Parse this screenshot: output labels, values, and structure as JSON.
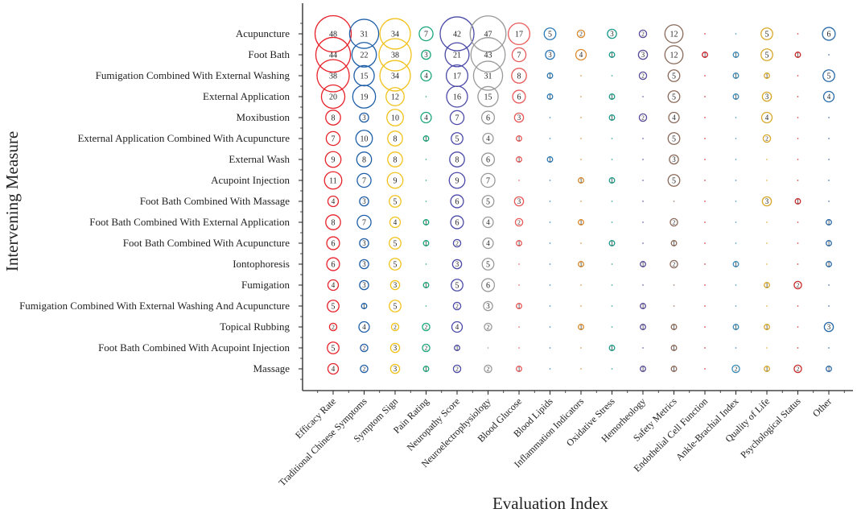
{
  "chart_data": {
    "type": "bubble",
    "xlabel": "Evaluation Index",
    "ylabel": "Intervening Measure",
    "categories_x": [
      "Efficacy Rate",
      "Traditional Chinese Symptoms",
      "Symptom Sign",
      "Pain Rating",
      "Neuropathy Score",
      "Neuroelectrophysiology",
      "Blood Glucose",
      "Blood Lipids",
      "Inflammation Indicators",
      "Oxidative Stress",
      "Hemorheology",
      "Safety Metrics",
      "Endothelial Cell Function",
      "Ankle-Brachial Index",
      "Quality of Life",
      "Psychological Status",
      "Other"
    ],
    "categories_y": [
      "Acupuncture",
      "Foot Bath",
      "Fumigation Combined With External Washing",
      "External Application",
      "Moxibustion",
      "External Application Combined With Acupuncture",
      "External Wash",
      "Acupoint Injection",
      "Foot Bath Combined With Massage",
      "Foot Bath Combined With External Application",
      "Foot Bath Combined With Acupuncture",
      "Iontophoresis",
      "Fumigation",
      "Fumigation Combined With External Washing And Acupuncture",
      "Topical Rubbing",
      "Foot Bath Combined With Acupoint Injection",
      "Massage"
    ],
    "column_colors": [
      "#e8222a",
      "#1f5fa8",
      "#f2c21b",
      "#1aa57a",
      "#4b4aa8",
      "#9a9a9a",
      "#e85a5a",
      "#2a7ab8",
      "#d98a2a",
      "#1a9a8a",
      "#5a4a9a",
      "#8a6a5a",
      "#c8222a",
      "#3a8ab8",
      "#d9a82a",
      "#c82a2a",
      "#2a6aa8"
    ],
    "values": [
      [
        48,
        31,
        34,
        7,
        42,
        47,
        17,
        5,
        2,
        3,
        2,
        12,
        0,
        0,
        5,
        0,
        6
      ],
      [
        44,
        22,
        38,
        3,
        21,
        43,
        7,
        3,
        4,
        1,
        3,
        12,
        1,
        1,
        5,
        1,
        0
      ],
      [
        38,
        15,
        34,
        4,
        17,
        31,
        8,
        1,
        0,
        0,
        2,
        5,
        0,
        1,
        1,
        0,
        5
      ],
      [
        20,
        19,
        12,
        0,
        16,
        15,
        6,
        1,
        0,
        1,
        0,
        5,
        0,
        1,
        3,
        0,
        4
      ],
      [
        8,
        3,
        10,
        4,
        7,
        6,
        3,
        0,
        0,
        1,
        2,
        4,
        0,
        0,
        4,
        0,
        0
      ],
      [
        7,
        10,
        8,
        1,
        5,
        4,
        1,
        0,
        0,
        0,
        0,
        5,
        0,
        0,
        2,
        0,
        0
      ],
      [
        9,
        8,
        8,
        0,
        8,
        6,
        1,
        1,
        0,
        0,
        0,
        3,
        0,
        0,
        0,
        0,
        0
      ],
      [
        11,
        7,
        9,
        0,
        9,
        7,
        0,
        0,
        1,
        1,
        0,
        5,
        0,
        0,
        0,
        0,
        0
      ],
      [
        4,
        3,
        5,
        0,
        6,
        5,
        3,
        0,
        0,
        0,
        0,
        0,
        0,
        0,
        3,
        1,
        0
      ],
      [
        8,
        7,
        4,
        1,
        6,
        4,
        2,
        0,
        1,
        0,
        0,
        2,
        0,
        0,
        0,
        0,
        1
      ],
      [
        6,
        3,
        5,
        1,
        2,
        4,
        1,
        0,
        0,
        1,
        0,
        1,
        0,
        0,
        0,
        0,
        1
      ],
      [
        6,
        3,
        5,
        0,
        3,
        5,
        0,
        0,
        1,
        0,
        1,
        2,
        0,
        1,
        0,
        0,
        1
      ],
      [
        4,
        3,
        3,
        1,
        5,
        6,
        0,
        0,
        0,
        0,
        0,
        0,
        0,
        0,
        1,
        2,
        0
      ],
      [
        5,
        1,
        5,
        0,
        2,
        3,
        1,
        0,
        0,
        0,
        1,
        0,
        0,
        0,
        0,
        0,
        0
      ],
      [
        2,
        4,
        2,
        2,
        4,
        2,
        0,
        0,
        1,
        0,
        1,
        1,
        0,
        1,
        1,
        0,
        3
      ],
      [
        5,
        2,
        3,
        2,
        1,
        0,
        0,
        0,
        0,
        1,
        0,
        1,
        0,
        0,
        0,
        0,
        0
      ],
      [
        4,
        2,
        3,
        1,
        2,
        2,
        1,
        0,
        0,
        0,
        1,
        1,
        0,
        2,
        1,
        2,
        1
      ]
    ]
  }
}
